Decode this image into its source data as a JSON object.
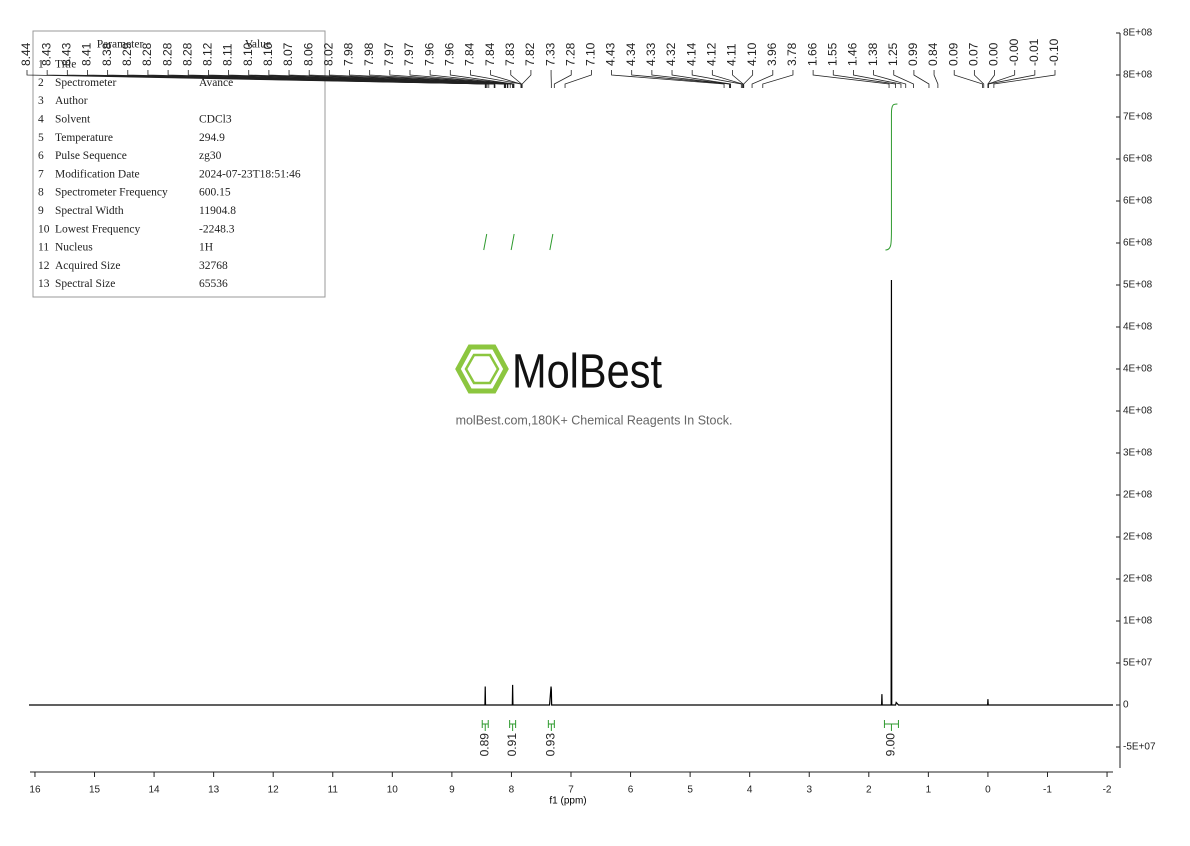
{
  "chart_data": {
    "type": "spectrum",
    "x_label": "f1 (ppm)",
    "xlim": [
      16.1,
      -2.1
    ],
    "xticks": [
      16,
      15,
      14,
      13,
      12,
      11,
      10,
      9,
      8,
      7,
      6,
      5,
      4,
      3,
      2,
      1,
      0,
      -1,
      -2
    ],
    "ylim": [
      -75000000,
      800000000
    ],
    "yticks": [
      {
        "value": -50000000,
        "label": "-5E+07"
      },
      0,
      {
        "value": 50000000,
        "label": "5E+07"
      },
      {
        "value": 100000000,
        "label": "1E+08"
      },
      {
        "value": 150000000,
        "label": "2E+08"
      },
      {
        "value": 200000000,
        "label": "2E+08"
      },
      {
        "value": 250000000,
        "label": "2E+08"
      },
      {
        "value": 300000000,
        "label": "3E+08"
      },
      {
        "value": 350000000,
        "label": "4E+08"
      },
      {
        "value": 400000000,
        "label": "4E+08"
      },
      {
        "value": 450000000,
        "label": "4E+08"
      },
      {
        "value": 500000000,
        "label": "5E+08"
      },
      {
        "value": 550000000,
        "label": "6E+08"
      },
      {
        "value": 600000000,
        "label": "6E+08"
      },
      {
        "value": 650000000,
        "label": "6E+08"
      },
      {
        "value": 700000000,
        "label": "7E+08"
      },
      {
        "value": 750000000,
        "label": "8E+08"
      },
      {
        "value": 800000000,
        "label": "8E+08"
      }
    ],
    "color": "#000000",
    "x": [
      16.1,
      8.47,
      8.445,
      8.44,
      8.435,
      8.41,
      8.0,
      7.985,
      7.98,
      7.975,
      7.95,
      7.36,
      7.335,
      7.33,
      7.325,
      7.3,
      1.82,
      1.785,
      1.78,
      1.775,
      1.65,
      1.625,
      1.62,
      1.615,
      1.59,
      1.55,
      1.54,
      1.5,
      0.03,
      0.005,
      0.0,
      -0.005,
      -0.03,
      -2.1
    ],
    "y": [
      0,
      0,
      0,
      22000000,
      0,
      0,
      0,
      0,
      24000000,
      0,
      0,
      0,
      22000000,
      18000000,
      0,
      0,
      0,
      0,
      13000000,
      0,
      0,
      0,
      506000000,
      0,
      0,
      0,
      3000000,
      0,
      0,
      0,
      7000000,
      0,
      0,
      0
    ],
    "peaks": [
      {
        "value": 8.44,
        "label": "8.44"
      },
      {
        "value": 8.43,
        "label": "8.43"
      },
      {
        "value": 8.43,
        "label": "8.43"
      },
      {
        "value": 8.41,
        "label": "8.41"
      },
      {
        "value": 8.38,
        "label": "8.38"
      },
      {
        "value": 8.29,
        "label": "8.29"
      },
      {
        "value": 8.28,
        "label": "8.28"
      },
      {
        "value": 8.28,
        "label": "8.28"
      },
      {
        "value": 8.28,
        "label": "8.28"
      },
      {
        "value": 8.12,
        "label": "8.12"
      },
      {
        "value": 8.11,
        "label": "8.11"
      },
      {
        "value": 8.1,
        "label": "8.10"
      },
      {
        "value": 8.1,
        "label": "8.10"
      },
      {
        "value": 8.07,
        "label": "8.07"
      },
      {
        "value": 8.06,
        "label": "8.06"
      },
      {
        "value": 8.02,
        "label": "8.02"
      },
      {
        "value": 7.98,
        "label": "7.98"
      },
      {
        "value": 7.98,
        "label": "7.98"
      },
      {
        "value": 7.97,
        "label": "7.97"
      },
      {
        "value": 7.97,
        "label": "7.97"
      },
      {
        "value": 7.96,
        "label": "7.96"
      },
      {
        "value": 7.96,
        "label": "7.96"
      },
      {
        "value": 7.84,
        "label": "7.84"
      },
      {
        "value": 7.84,
        "label": "7.84"
      },
      {
        "value": 7.83,
        "label": "7.83"
      },
      {
        "value": 7.82,
        "label": "7.82"
      },
      {
        "value": 7.33,
        "label": "7.33"
      },
      {
        "value": 7.28,
        "label": "7.28"
      },
      {
        "value": 7.1,
        "label": "7.10"
      },
      {
        "value": 4.43,
        "label": "4.43"
      },
      {
        "value": 4.34,
        "label": "4.34"
      },
      {
        "value": 4.33,
        "label": "4.33"
      },
      {
        "value": 4.32,
        "label": "4.32"
      },
      {
        "value": 4.14,
        "label": "4.14"
      },
      {
        "value": 4.12,
        "label": "4.12"
      },
      {
        "value": 4.11,
        "label": "4.11"
      },
      {
        "value": 4.1,
        "label": "4.10"
      },
      {
        "value": 3.96,
        "label": "3.96"
      },
      {
        "value": 3.78,
        "label": "3.78"
      },
      {
        "value": 1.66,
        "label": "1.66"
      },
      {
        "value": 1.55,
        "label": "1.55"
      },
      {
        "value": 1.46,
        "label": "1.46"
      },
      {
        "value": 1.38,
        "label": "1.38"
      },
      {
        "value": 1.25,
        "label": "1.25"
      },
      {
        "value": 0.99,
        "label": "0.99"
      },
      {
        "value": 0.84,
        "label": "0.84"
      },
      {
        "value": 0.09,
        "label": "0.09"
      },
      {
        "value": 0.07,
        "label": "0.07"
      },
      {
        "value": 0.0,
        "label": "0.00"
      },
      {
        "value": -0.0,
        "label": "-0.00"
      },
      {
        "value": -0.01,
        "label": "-0.01"
      },
      {
        "value": -0.1,
        "label": "-0.10"
      }
    ],
    "integrals": {
      "positions": [
        8.44,
        7.98,
        7.33,
        1.62
      ],
      "values": [
        0.89,
        0.91,
        0.93,
        9.0
      ],
      "value_labels": [
        "0.89",
        "0.91",
        "0.93",
        "9.00"
      ],
      "color": "#2e9a2e"
    }
  },
  "parameters": {
    "header": [
      "Parameter",
      "Value"
    ],
    "rows": [
      [
        "1",
        "Title"
      ],
      [
        "2",
        "Spectrometer",
        "Avance"
      ],
      [
        "3",
        "Author"
      ],
      [
        "4",
        "Solvent",
        "CDCl3"
      ],
      [
        "5",
        "Temperature",
        "294.9"
      ],
      [
        "6",
        "Pulse Sequence",
        "zg30"
      ],
      [
        "7",
        "Modification Date",
        "2024-07-23T18:51:46"
      ],
      [
        "8",
        "Spectrometer Frequency",
        "600.15"
      ],
      [
        "9",
        "Spectral Width",
        "11904.8"
      ],
      [
        "10",
        "Lowest Frequency",
        "-2248.3"
      ],
      [
        "11",
        "Nucleus",
        "1H"
      ],
      [
        "12",
        "Acquired Size",
        "32768"
      ],
      [
        "13",
        "Spectral Size",
        "65536"
      ]
    ]
  },
  "watermark": {
    "brand": "MolBest",
    "tagline": "molBest.com,180K+ Chemical Reagents In Stock."
  }
}
